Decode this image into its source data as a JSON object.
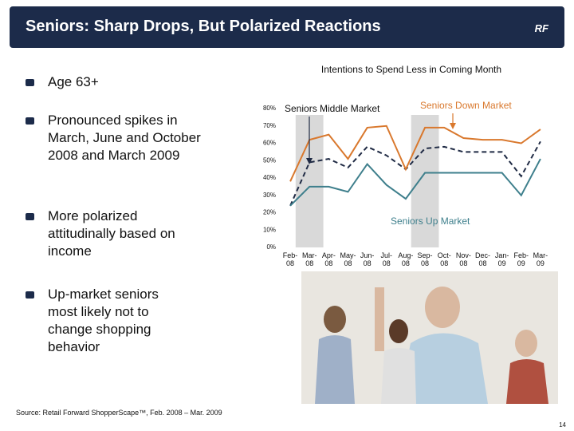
{
  "header": {
    "title": "Seniors: Sharp Drops, But Polarized Reactions",
    "logo": "RF"
  },
  "bullets": [
    "Age 63+",
    "Pronounced spikes in March, June and October 2008 and March 2009",
    "More polarized attitudinally based on income",
    "Up-market seniors most likely not to change shopping behavior"
  ],
  "chart_data": {
    "type": "line",
    "title": "Intentions to Spend Less in Coming Month",
    "categories": [
      "Feb-08",
      "Mar-08",
      "Apr-08",
      "May-08",
      "Jun-08",
      "Jul-08",
      "Aug-08",
      "Sep-08",
      "Oct-08",
      "Nov-08",
      "Dec-08",
      "Jan-09",
      "Feb-09",
      "Mar-09"
    ],
    "series": [
      {
        "name": "Seniors Middle Market",
        "color": "#1f2a44",
        "dashed": true,
        "values": [
          24,
          49,
          51,
          46,
          58,
          53,
          45,
          57,
          58,
          55,
          55,
          55,
          41,
          61
        ]
      },
      {
        "name": "Seniors Down Market",
        "color": "#d9782d",
        "dashed": false,
        "values": [
          38,
          62,
          65,
          51,
          69,
          70,
          45,
          69,
          69,
          63,
          62,
          62,
          60,
          68
        ]
      },
      {
        "name": "Seniors Up Market",
        "color": "#3e7f8c",
        "dashed": false,
        "values": [
          24,
          35,
          35,
          32,
          48,
          36,
          28,
          43,
          43,
          43,
          43,
          43,
          30,
          51
        ]
      }
    ],
    "shaded": [
      1,
      7
    ],
    "ylim": [
      0,
      80
    ],
    "yticks": [
      {
        "value": 0,
        "label": "0%"
      },
      {
        "value": 10,
        "label": "10%"
      },
      {
        "value": 20,
        "label": "20%"
      },
      {
        "value": 30,
        "label": "30%"
      },
      {
        "value": 40,
        "label": "40%"
      },
      {
        "value": 50,
        "label": "50%"
      },
      {
        "value": 60,
        "label": "60%"
      },
      {
        "value": 70,
        "label": "70%"
      },
      {
        "value": 80,
        "label": "80%"
      }
    ]
  },
  "source": "Source: Retail Forward ShopperScape™, Feb. 2008 – Mar. 2009",
  "page_number": "14"
}
